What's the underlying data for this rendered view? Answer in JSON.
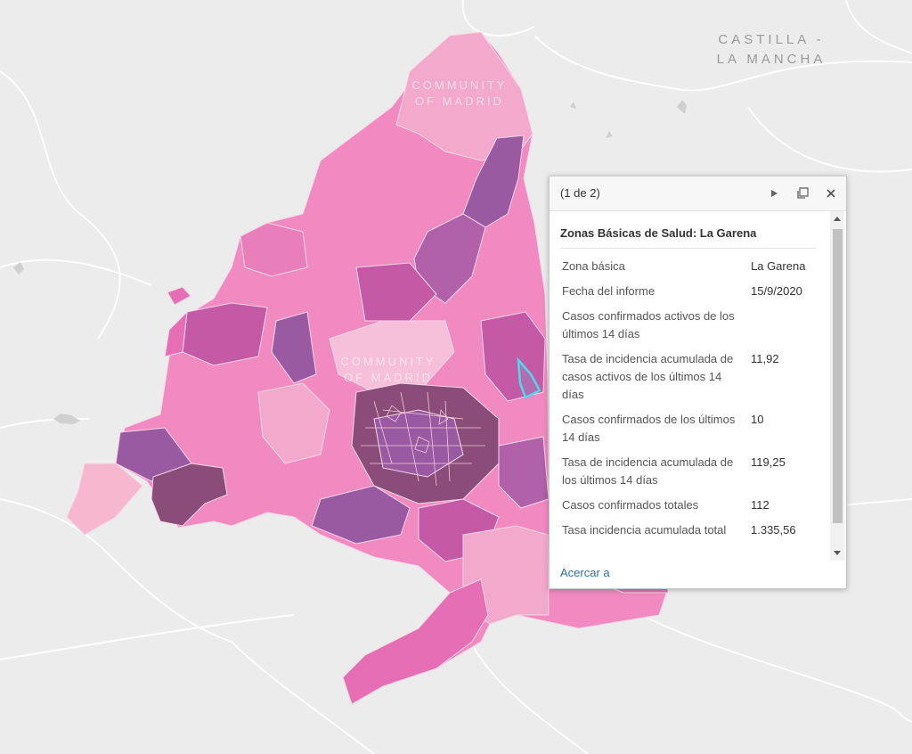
{
  "map": {
    "region_labels": [
      {
        "line1": "CASTILLA -",
        "line2": "LA MANCHA"
      },
      {
        "line1": "COMMUNITY",
        "line2": "OF MADRID"
      },
      {
        "line1": "COMMUNITY",
        "line2": "OF MADRID"
      }
    ],
    "colors": {
      "background": "#ececec",
      "lightest": "#f3a9cb",
      "light": "#f08ac0",
      "medium": "#e56eb5",
      "dark": "#c45aa5",
      "purple": "#9a5aa2",
      "darkest": "#8a4c78",
      "selection": "#4fd8ea"
    },
    "selected_feature": "La Garena"
  },
  "popup": {
    "counter": "(1 de 2)",
    "title": "Zonas Básicas de Salud: La Garena",
    "rows": [
      {
        "label": "Zona básica",
        "value": "La Garena"
      },
      {
        "label": "Fecha del informe",
        "value": "15/9/2020"
      },
      {
        "label": "Casos confirmados activos de los últimos 14 días",
        "value": ""
      },
      {
        "label": "Tasa de incidencia acumulada de casos activos de los últimos 14 días",
        "value": "11,92"
      },
      {
        "label": "Casos confirmados de los últimos 14 días",
        "value": "10"
      },
      {
        "label": "Tasa de incidencia acumulada de los últimos 14 días",
        "value": "119,25"
      },
      {
        "label": "Casos confirmados totales",
        "value": "112"
      },
      {
        "label": "Tasa incidencia acumulada total",
        "value": "1.335,56"
      }
    ],
    "zoom_link": "Acercar a",
    "icons": {
      "next": "play-next-icon",
      "dock": "dock-icon",
      "close": "close-icon"
    }
  }
}
